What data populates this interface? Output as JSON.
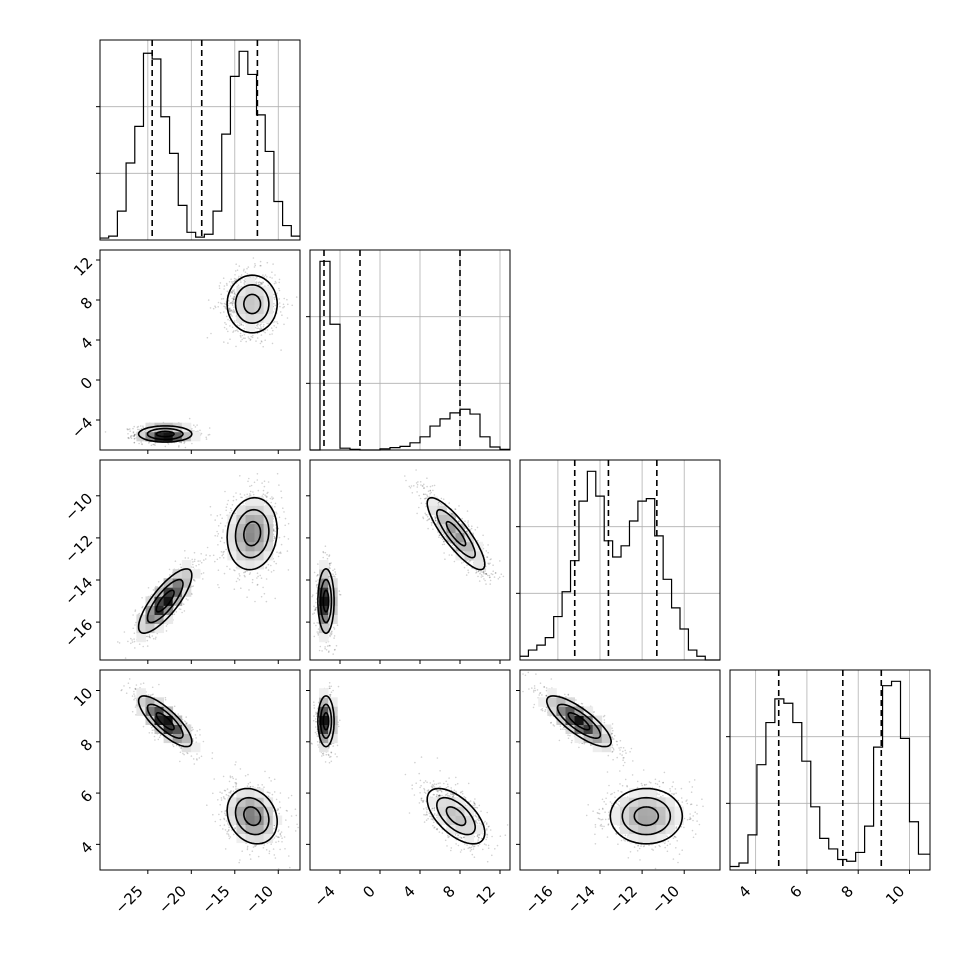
{
  "chart_data": {
    "type": "corner",
    "parameters": [
      {
        "index": 0,
        "range": [
          -30.5,
          -7.5
        ],
        "ticks": [
          -25,
          -20,
          -15,
          -10
        ],
        "tick_labels": [
          "−25",
          "−20",
          "−15",
          "−10"
        ]
      },
      {
        "index": 1,
        "range": [
          -7,
          13
        ],
        "ticks": [
          -4,
          0,
          4,
          8,
          12
        ],
        "tick_labels": [
          "−4",
          "0",
          "4",
          "8",
          "12"
        ]
      },
      {
        "index": 2,
        "range": [
          -17.8,
          -8.3
        ],
        "ticks": [
          -16,
          -14,
          -12,
          -10
        ],
        "tick_labels": [
          "−16",
          "−14",
          "−12",
          "−10"
        ]
      },
      {
        "index": 3,
        "range": [
          3.0,
          10.8
        ],
        "ticks": [
          4,
          6,
          8,
          10
        ],
        "tick_labels": [
          "4",
          "6",
          "8",
          "10"
        ]
      }
    ],
    "marginals": [
      {
        "param": 0,
        "bin_edges": [
          -30.5,
          -29.5,
          -28.5,
          -27.5,
          -26.5,
          -25.5,
          -24.5,
          -23.5,
          -22.5,
          -21.5,
          -20.5,
          -19.5,
          -18.5,
          -17.5,
          -16.5,
          -15.5,
          -14.5,
          -13.5,
          -12.5,
          -11.5,
          -10.5,
          -9.5,
          -8.5,
          -7.5
        ],
        "counts": [
          2,
          4,
          30,
          80,
          118,
          194,
          188,
          128,
          90,
          36,
          8,
          3,
          6,
          30,
          110,
          170,
          196,
          172,
          130,
          92,
          40,
          15,
          4
        ],
        "quantiles": [
          -24.5,
          -18.8,
          -12.4
        ]
      },
      {
        "param": 1,
        "bin_edges": [
          -7,
          -6,
          -5,
          -4,
          -3,
          -2,
          -1,
          0,
          1,
          2,
          3,
          4,
          5,
          6,
          7,
          8,
          9,
          10,
          11,
          12,
          13
        ],
        "counts": [
          0,
          315,
          210,
          3,
          1,
          0,
          0,
          2,
          4,
          6,
          12,
          22,
          40,
          52,
          62,
          68,
          60,
          22,
          5,
          1
        ],
        "quantiles": [
          -5.6,
          -2.0,
          8.0
        ]
      },
      {
        "param": 2,
        "bin_edges": [
          -17.8,
          -17.4,
          -17.0,
          -16.6,
          -16.2,
          -15.8,
          -15.4,
          -15.0,
          -14.6,
          -14.2,
          -13.8,
          -13.4,
          -13.0,
          -12.6,
          -12.2,
          -11.8,
          -11.4,
          -11.0,
          -10.6,
          -10.2,
          -9.8,
          -9.4,
          -9.0,
          -8.6,
          -8.3
        ],
        "counts": [
          3,
          8,
          12,
          18,
          35,
          55,
          80,
          128,
          152,
          132,
          96,
          83,
          92,
          112,
          128,
          130,
          100,
          65,
          42,
          25,
          8,
          3,
          0,
          0
        ],
        "quantiles": [
          -15.2,
          -13.6,
          -11.3
        ]
      },
      {
        "param": 3,
        "bin_edges": [
          3.0,
          3.35,
          3.7,
          4.05,
          4.4,
          4.75,
          5.1,
          5.45,
          5.8,
          6.15,
          6.5,
          6.85,
          7.2,
          7.55,
          7.9,
          8.25,
          8.6,
          8.95,
          9.3,
          9.65,
          10.0,
          10.35,
          10.8
        ],
        "counts": [
          4,
          8,
          40,
          120,
          168,
          195,
          190,
          168,
          124,
          72,
          36,
          24,
          12,
          10,
          20,
          50,
          140,
          210,
          215,
          150,
          55,
          18
        ],
        "quantiles": [
          4.9,
          7.4,
          8.9
        ]
      }
    ],
    "modes": [
      {
        "weight": 0.5,
        "mean": [
          -23.0,
          -5.4,
          -15.0,
          8.8
        ],
        "std": [
          1.7,
          0.45,
          0.85,
          0.55
        ],
        "corr": {
          "0-2": 0.8,
          "0-3": -0.8,
          "2-3": -0.8,
          "1-2": 0.0,
          "1-3": 0.0,
          "0-1": 0.0
        }
      },
      {
        "weight": 0.5,
        "mean": [
          -13.0,
          7.6,
          -11.8,
          5.1
        ],
        "std": [
          1.6,
          1.6,
          0.95,
          0.6
        ],
        "corr": {
          "0-1": 0.0,
          "0-2": 0.1,
          "0-3": -0.2,
          "1-2": -0.85,
          "1-3": -0.6,
          "2-3": 0.0
        }
      }
    ]
  }
}
